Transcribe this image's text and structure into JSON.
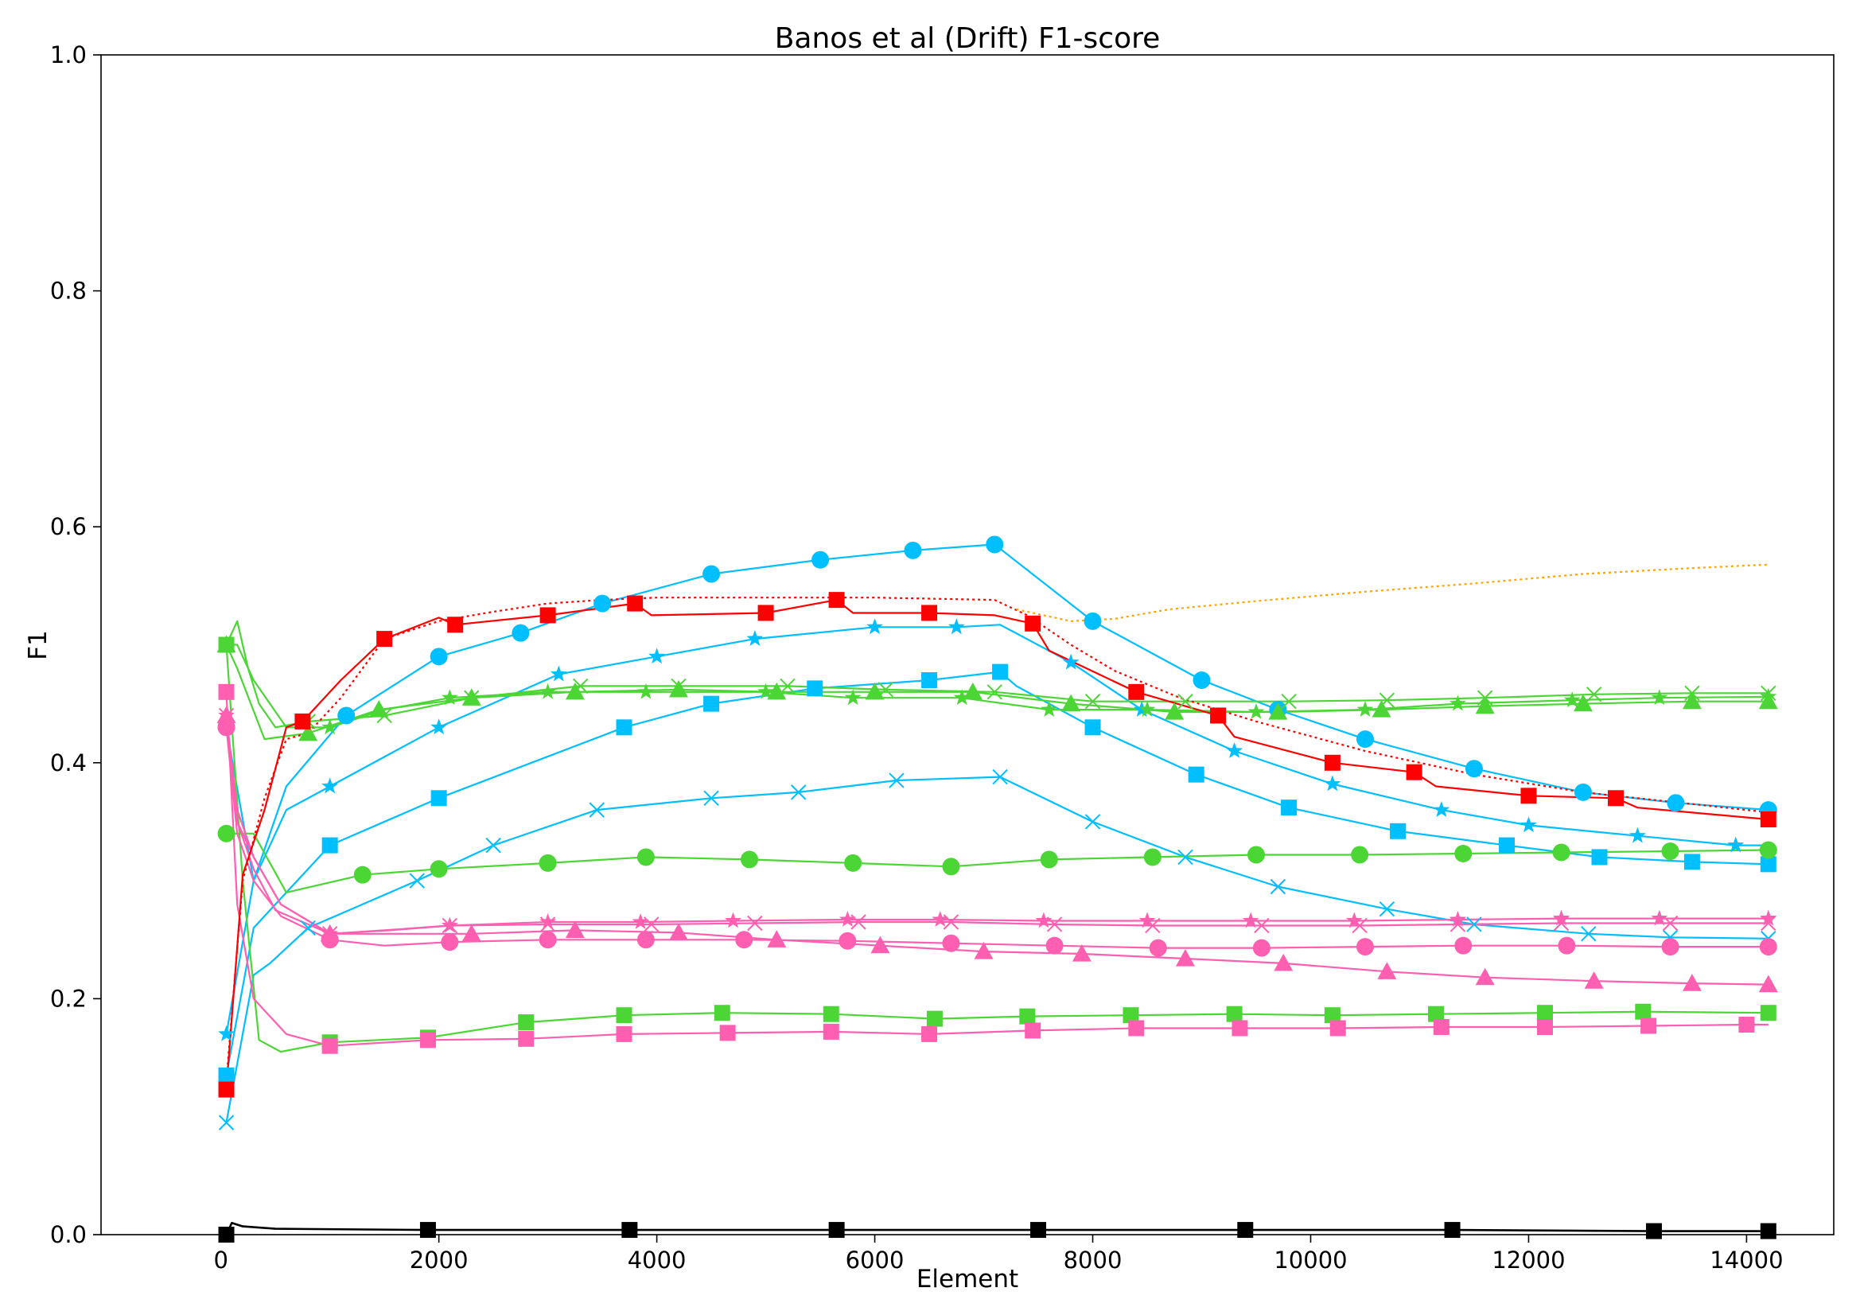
{
  "chart_data": {
    "type": "line",
    "title": "Banos et al (Drift) F1-score",
    "xlabel": "Element",
    "ylabel": "F1",
    "xlim": [
      -1100,
      14800
    ],
    "ylim": [
      0.0,
      1.0
    ],
    "xticks": [
      0,
      2000,
      4000,
      6000,
      8000,
      10000,
      12000,
      14000
    ],
    "yticks": [
      0.0,
      0.2,
      0.4,
      0.6,
      0.8,
      1.0
    ],
    "xtick_labels": [
      "0",
      "2000",
      "4000",
      "6000",
      "8000",
      "10000",
      "12000",
      "14000"
    ],
    "ytick_labels": [
      "0.0",
      "0.2",
      "0.4",
      "0.6",
      "0.8",
      "1.0"
    ],
    "grid": false,
    "legend": "none",
    "colors": {
      "blue": "#00bfff",
      "green": "#4cd636",
      "pink": "#ff5fb0",
      "red": "#ff0000",
      "orange": "#ffa500",
      "black": "#000000"
    },
    "series": [
      {
        "color": "#00bfff",
        "marker": "circle",
        "style": "solid",
        "x": [
          50,
          300,
          600,
          1150,
          2000,
          2750,
          3500,
          4500,
          5500,
          6350,
          7100,
          8000,
          9000,
          9700,
          10500,
          11500,
          12500,
          13350,
          14200
        ],
        "y": [
          0.43,
          0.3,
          0.38,
          0.44,
          0.49,
          0.51,
          0.535,
          0.56,
          0.572,
          0.58,
          0.585,
          0.52,
          0.47,
          0.445,
          0.42,
          0.395,
          0.375,
          0.366,
          0.36
        ]
      },
      {
        "color": "#00bfff",
        "marker": "star",
        "style": "solid",
        "x": [
          50,
          300,
          600,
          1000,
          1500,
          2000,
          3100,
          4000,
          4900,
          6000,
          6750,
          7150,
          7800,
          8450,
          9300,
          10200,
          11200,
          12000,
          13000,
          13900,
          14200
        ],
        "y": [
          0.17,
          0.3,
          0.36,
          0.38,
          0.405,
          0.43,
          0.475,
          0.49,
          0.505,
          0.515,
          0.515,
          0.517,
          0.485,
          0.445,
          0.41,
          0.382,
          0.36,
          0.347,
          0.338,
          0.33,
          0.33
        ]
      },
      {
        "color": "#00bfff",
        "marker": "square",
        "style": "solid",
        "x": [
          50,
          300,
          600,
          1000,
          2000,
          3700,
          4500,
          5450,
          6500,
          7150,
          7300,
          8000,
          8950,
          9800,
          10800,
          11800,
          12650,
          13500,
          14200
        ],
        "y": [
          0.135,
          0.26,
          0.29,
          0.33,
          0.37,
          0.43,
          0.45,
          0.463,
          0.47,
          0.477,
          0.465,
          0.43,
          0.39,
          0.362,
          0.342,
          0.33,
          0.32,
          0.316,
          0.314
        ]
      },
      {
        "color": "#00bfff",
        "marker": "x",
        "style": "solid",
        "x": [
          50,
          300,
          450,
          800,
          1800,
          2500,
          3450,
          4500,
          5300,
          6200,
          7150,
          8000,
          8850,
          9700,
          10700,
          11500,
          12550,
          13300,
          14200
        ],
        "y": [
          0.095,
          0.22,
          0.23,
          0.26,
          0.3,
          0.33,
          0.36,
          0.37,
          0.375,
          0.385,
          0.388,
          0.35,
          0.32,
          0.295,
          0.276,
          0.263,
          0.255,
          0.252,
          0.251
        ]
      },
      {
        "color": "#4cd636",
        "marker": "x",
        "style": "solid",
        "x": [
          50,
          150,
          250,
          350,
          500,
          800,
          1500,
          2300,
          3300,
          4200,
          5200,
          6100,
          7100,
          8000,
          8850,
          9800,
          10700,
          11600,
          12600,
          13500,
          14200
        ],
        "y": [
          0.5,
          0.52,
          0.48,
          0.45,
          0.43,
          0.435,
          0.44,
          0.455,
          0.465,
          0.465,
          0.465,
          0.462,
          0.46,
          0.452,
          0.452,
          0.452,
          0.453,
          0.455,
          0.458,
          0.459,
          0.459
        ]
      },
      {
        "color": "#4cd636",
        "marker": "star",
        "style": "solid",
        "x": [
          50,
          150,
          300,
          600,
          1000,
          1500,
          2100,
          3000,
          3900,
          5000,
          5800,
          6800,
          7600,
          8500,
          9500,
          10500,
          11350,
          12400,
          13200,
          14200
        ],
        "y": [
          0.5,
          0.5,
          0.47,
          0.43,
          0.43,
          0.445,
          0.455,
          0.46,
          0.46,
          0.46,
          0.455,
          0.455,
          0.445,
          0.445,
          0.443,
          0.445,
          0.45,
          0.453,
          0.455,
          0.456
        ]
      },
      {
        "color": "#4cd636",
        "marker": "triangle",
        "style": "solid",
        "x": [
          50,
          150,
          400,
          800,
          1450,
          2300,
          3250,
          4200,
          5100,
          6000,
          6900,
          7800,
          8750,
          9700,
          10650,
          11600,
          12500,
          13500,
          14200
        ],
        "y": [
          0.5,
          0.48,
          0.42,
          0.425,
          0.445,
          0.455,
          0.46,
          0.462,
          0.46,
          0.46,
          0.46,
          0.45,
          0.443,
          0.443,
          0.445,
          0.448,
          0.45,
          0.452,
          0.452
        ]
      },
      {
        "color": "#4cd636",
        "marker": "circle",
        "style": "solid",
        "x": [
          50,
          300,
          600,
          1300,
          2000,
          3000,
          3900,
          4850,
          5800,
          6700,
          7600,
          8550,
          9500,
          10450,
          11400,
          12300,
          13300,
          14200
        ],
        "y": [
          0.34,
          0.34,
          0.29,
          0.305,
          0.31,
          0.315,
          0.32,
          0.318,
          0.315,
          0.312,
          0.318,
          0.32,
          0.322,
          0.322,
          0.323,
          0.324,
          0.325,
          0.326
        ]
      },
      {
        "color": "#4cd636",
        "marker": "square",
        "style": "solid",
        "x": [
          50,
          200,
          350,
          550,
          1000,
          1900,
          2800,
          3700,
          4600,
          5600,
          6550,
          7400,
          8350,
          9300,
          10200,
          11150,
          12150,
          13050,
          14200
        ],
        "y": [
          0.5,
          0.3,
          0.165,
          0.155,
          0.163,
          0.167,
          0.18,
          0.186,
          0.188,
          0.187,
          0.183,
          0.185,
          0.186,
          0.187,
          0.186,
          0.187,
          0.188,
          0.189,
          0.188
        ]
      },
      {
        "color": "#ff5fb0",
        "marker": "star",
        "style": "solid",
        "x": [
          50,
          150,
          300,
          550,
          1000,
          1500,
          2100,
          3000,
          3850,
          4700,
          5750,
          6600,
          7550,
          8500,
          9450,
          10400,
          11350,
          12300,
          13200,
          14200
        ],
        "y": [
          0.44,
          0.36,
          0.32,
          0.28,
          0.255,
          0.258,
          0.262,
          0.265,
          0.265,
          0.266,
          0.267,
          0.267,
          0.266,
          0.266,
          0.266,
          0.266,
          0.267,
          0.268,
          0.268,
          0.268
        ]
      },
      {
        "color": "#ff5fb0",
        "marker": "x",
        "style": "solid",
        "x": [
          50,
          150,
          300,
          500,
          1000,
          1550,
          2100,
          3000,
          3950,
          4900,
          5850,
          6700,
          7650,
          8550,
          9550,
          10450,
          11350,
          12300,
          13300,
          14200
        ],
        "y": [
          0.44,
          0.35,
          0.31,
          0.275,
          0.255,
          0.258,
          0.262,
          0.263,
          0.263,
          0.264,
          0.265,
          0.265,
          0.263,
          0.262,
          0.262,
          0.262,
          0.263,
          0.264,
          0.264,
          0.264
        ]
      },
      {
        "color": "#ff5fb0",
        "marker": "triangle",
        "style": "solid",
        "x": [
          50,
          150,
          300,
          550,
          1000,
          1450,
          2300,
          3250,
          4200,
          5100,
          6050,
          7000,
          7900,
          8850,
          9750,
          10700,
          11600,
          12600,
          13500,
          14200
        ],
        "y": [
          0.44,
          0.35,
          0.32,
          0.28,
          0.255,
          0.255,
          0.255,
          0.258,
          0.256,
          0.25,
          0.245,
          0.24,
          0.238,
          0.234,
          0.23,
          0.223,
          0.218,
          0.215,
          0.213,
          0.212
        ]
      },
      {
        "color": "#ff5fb0",
        "marker": "circle",
        "style": "solid",
        "x": [
          50,
          150,
          300,
          550,
          1000,
          1500,
          2100,
          3000,
          3900,
          4800,
          5750,
          6700,
          7650,
          8600,
          9550,
          10500,
          11400,
          12350,
          13300,
          14200
        ],
        "y": [
          0.43,
          0.34,
          0.3,
          0.27,
          0.25,
          0.245,
          0.248,
          0.25,
          0.25,
          0.25,
          0.249,
          0.247,
          0.245,
          0.243,
          0.243,
          0.244,
          0.245,
          0.245,
          0.244,
          0.244
        ]
      },
      {
        "color": "#ff5fb0",
        "marker": "square",
        "style": "solid",
        "x": [
          50,
          150,
          300,
          600,
          1000,
          1900,
          2800,
          3700,
          4650,
          5600,
          6500,
          7450,
          8400,
          9350,
          10250,
          11200,
          12150,
          13100,
          14000,
          14200
        ],
        "y": [
          0.46,
          0.28,
          0.2,
          0.17,
          0.16,
          0.165,
          0.166,
          0.17,
          0.171,
          0.172,
          0.17,
          0.173,
          0.175,
          0.175,
          0.175,
          0.176,
          0.176,
          0.177,
          0.178,
          0.178
        ]
      },
      {
        "color": "#ff0000",
        "marker": "none",
        "style": "dotted",
        "x": [
          50,
          200,
          400,
          600,
          800,
          1100,
          1500,
          2000,
          2500,
          3000,
          3500,
          4000,
          5000,
          6000,
          7100,
          7400,
          7800,
          8200,
          8800,
          9500,
          10500,
          11500,
          12500,
          13500,
          14200
        ],
        "y": [
          0.13,
          0.3,
          0.37,
          0.42,
          0.425,
          0.455,
          0.505,
          0.52,
          0.528,
          0.535,
          0.538,
          0.54,
          0.54,
          0.54,
          0.538,
          0.525,
          0.5,
          0.478,
          0.455,
          0.435,
          0.41,
          0.39,
          0.375,
          0.365,
          0.358
        ]
      },
      {
        "color": "#ffa500",
        "marker": "none",
        "style": "dotted",
        "x": [
          7300,
          7800,
          8200,
          8700,
          9500,
          10500,
          11500,
          12500,
          13500,
          14200
        ],
        "y": [
          0.53,
          0.52,
          0.522,
          0.53,
          0.537,
          0.545,
          0.552,
          0.56,
          0.565,
          0.568
        ]
      },
      {
        "color": "#ff0000",
        "marker": "square",
        "style": "solid",
        "x": [
          50,
          200,
          400,
          600,
          750,
          1100,
          1500,
          2000,
          2150,
          3000,
          3800,
          3950,
          5000,
          5650,
          5800,
          6500,
          7100,
          7450,
          7600,
          8400,
          9150,
          9300,
          10200,
          10950,
          11150,
          12000,
          12800,
          13000,
          14200
        ],
        "y": [
          0.123,
          0.305,
          0.36,
          0.43,
          0.435,
          0.47,
          0.505,
          0.523,
          0.517,
          0.525,
          0.535,
          0.525,
          0.527,
          0.538,
          0.527,
          0.527,
          0.525,
          0.518,
          0.495,
          0.46,
          0.44,
          0.422,
          0.4,
          0.392,
          0.38,
          0.372,
          0.37,
          0.362,
          0.352
        ]
      },
      {
        "color": "#000000",
        "marker": "square",
        "style": "solid",
        "x": [
          50,
          100,
          200,
          500,
          1900,
          3750,
          5650,
          7500,
          9400,
          11300,
          13150,
          14200
        ],
        "y": [
          0.0,
          0.01,
          0.007,
          0.005,
          0.004,
          0.004,
          0.004,
          0.004,
          0.004,
          0.004,
          0.003,
          0.003
        ]
      }
    ]
  }
}
